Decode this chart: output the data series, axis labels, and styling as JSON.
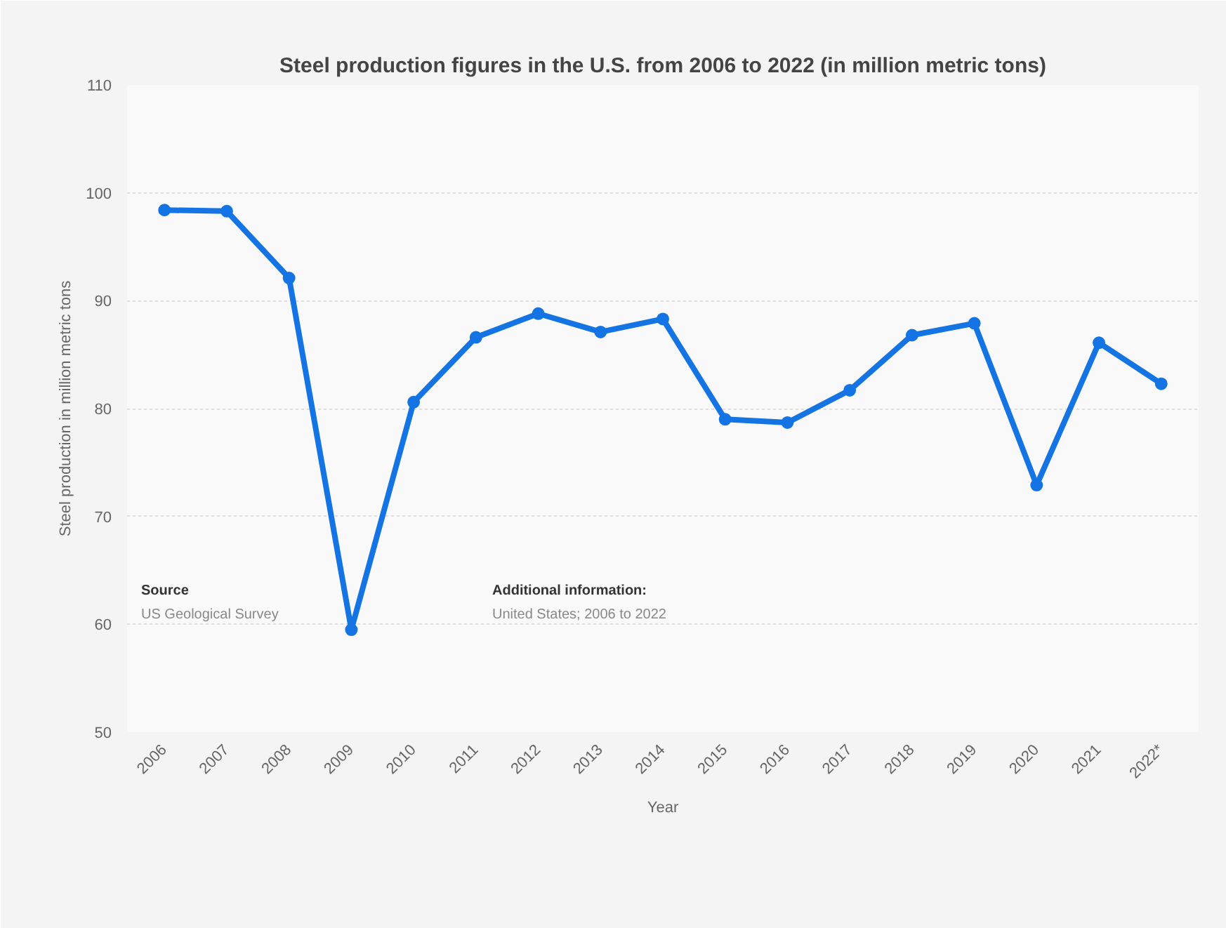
{
  "chart_data": {
    "type": "line",
    "title": "Steel production figures in the U.S. from 2006 to 2022 (in million metric tons)",
    "xlabel": "Year",
    "ylabel": "Steel production in million metric tons",
    "categories": [
      "2006",
      "2007",
      "2008",
      "2009",
      "2010",
      "2011",
      "2012",
      "2013",
      "2014",
      "2015",
      "2016",
      "2017",
      "2018",
      "2019",
      "2020",
      "2021",
      "2022*"
    ],
    "series": [
      {
        "color": "#1474e4",
        "values": [
          98.4,
          98.3,
          92.1,
          59.5,
          80.6,
          86.6,
          88.8,
          87.1,
          88.3,
          79.0,
          78.7,
          81.7,
          86.8,
          87.9,
          72.9,
          86.1,
          82.3
        ]
      }
    ],
    "ylim": [
      50,
      110
    ],
    "yticks": [
      50,
      60,
      70,
      80,
      90,
      100,
      110
    ],
    "grid": "y",
    "marker": "circle",
    "line_style": "solid",
    "annotations": [
      "Source",
      "US Geological Survey",
      "Additional information:",
      "United States; 2006 to 2022"
    ]
  }
}
